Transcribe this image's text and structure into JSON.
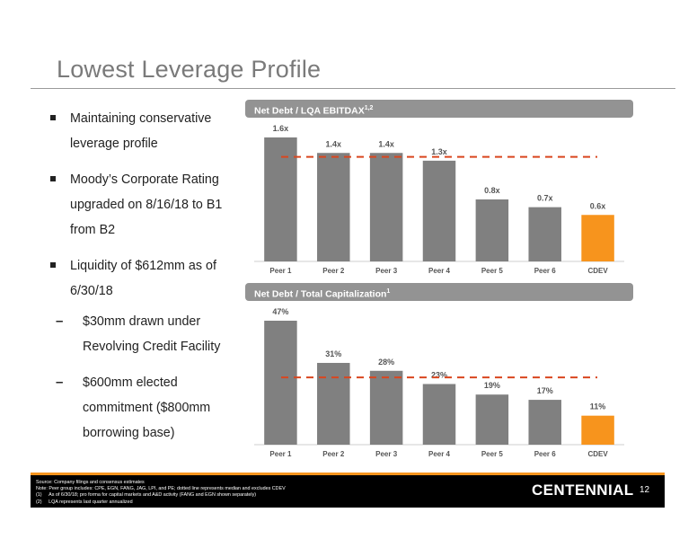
{
  "page": {
    "title": "Lowest Leverage Profile",
    "page_number": "12"
  },
  "bullets": [
    {
      "text": "Maintaining conservative leverage profile",
      "sub": []
    },
    {
      "text": "Moody’s Corporate Rating upgraded on 8/16/18 to B1 from B2",
      "sub": []
    },
    {
      "text": "Liquidity of $612mm as of 6/30/18",
      "sub": [
        "$30mm drawn under Revolving Credit Facility",
        "$600mm elected commitment ($800mm borrowing base)"
      ]
    }
  ],
  "colors": {
    "bar": "#808080",
    "highlight": "#f7941d",
    "median_line": "#d9461f",
    "header": "#939393"
  },
  "chart_data": [
    {
      "type": "bar",
      "title": "Net Debt / LQA EBITDAX",
      "title_sup": "1,2",
      "categories": [
        "Peer 1",
        "Peer 2",
        "Peer 3",
        "Peer 4",
        "Peer 5",
        "Peer 6",
        "CDEV"
      ],
      "values": [
        1.6,
        1.4,
        1.4,
        1.3,
        0.8,
        0.7,
        0.6
      ],
      "labels": [
        "1.6x",
        "1.4x",
        "1.4x",
        "1.3x",
        "0.8x",
        "0.7x",
        "0.6x"
      ],
      "highlight_index": 6,
      "median": 1.35,
      "ylim": [
        0,
        1.6
      ]
    },
    {
      "type": "bar",
      "title": "Net Debt / Total Capitalization",
      "title_sup": "1",
      "categories": [
        "Peer 1",
        "Peer 2",
        "Peer 3",
        "Peer 4",
        "Peer 5",
        "Peer 6",
        "CDEV"
      ],
      "values": [
        47,
        31,
        28,
        23,
        19,
        17,
        11
      ],
      "labels": [
        "47%",
        "31%",
        "28%",
        "23%",
        "19%",
        "17%",
        "11%"
      ],
      "highlight_index": 6,
      "median": 25.5,
      "ylim": [
        0,
        47
      ]
    }
  ],
  "footer": {
    "source": "Source: Company filings and consensus estimates",
    "note": "Note: Peer group includes: CPE, EGN, FANG, JAG, LPI, and PE; dotted line represents median and excludes CDEV",
    "note1_num": "(1)",
    "note1": "As of 6/30/18; pro forma for capital markets and A&D activity (FANG and EGN shown separately)",
    "note2_num": "(2)",
    "note2": "LQA represents last quarter annualized",
    "logo": "CENTENNIAL"
  }
}
